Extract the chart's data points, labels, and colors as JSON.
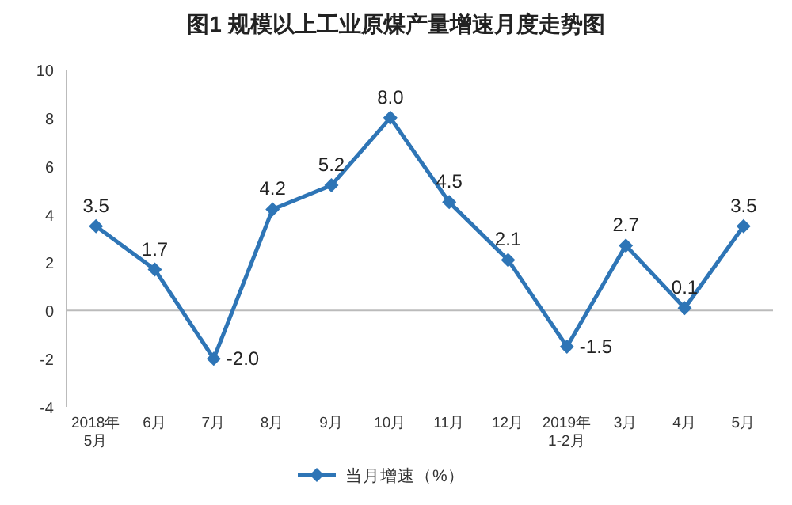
{
  "chart_data": {
    "type": "line",
    "title": "图1  规模以上工业原煤产量增速月度走势图",
    "categories": [
      "2018年\n5月",
      "6月",
      "7月",
      "8月",
      "9月",
      "10月",
      "11月",
      "12月",
      "2019年\n1-2月",
      "3月",
      "4月",
      "5月"
    ],
    "series": [
      {
        "name": "当月增速（%）",
        "color": "#2e75b6",
        "values": [
          3.5,
          1.7,
          -2.0,
          4.2,
          5.2,
          8.0,
          4.5,
          2.1,
          -1.5,
          2.7,
          0.1,
          3.5
        ],
        "value_labels": [
          "3.5",
          "1.7",
          "-2.0",
          "4.2",
          "5.2",
          "8.0",
          "4.5",
          "2.1",
          "-1.5",
          "2.7",
          "0.1",
          "3.5"
        ]
      }
    ],
    "ylim": [
      -4,
      10
    ],
    "yticks": [
      -4,
      -2,
      0,
      2,
      4,
      6,
      8,
      10
    ],
    "marker": "diamond",
    "line_style": "solid",
    "legend": "bottom"
  }
}
